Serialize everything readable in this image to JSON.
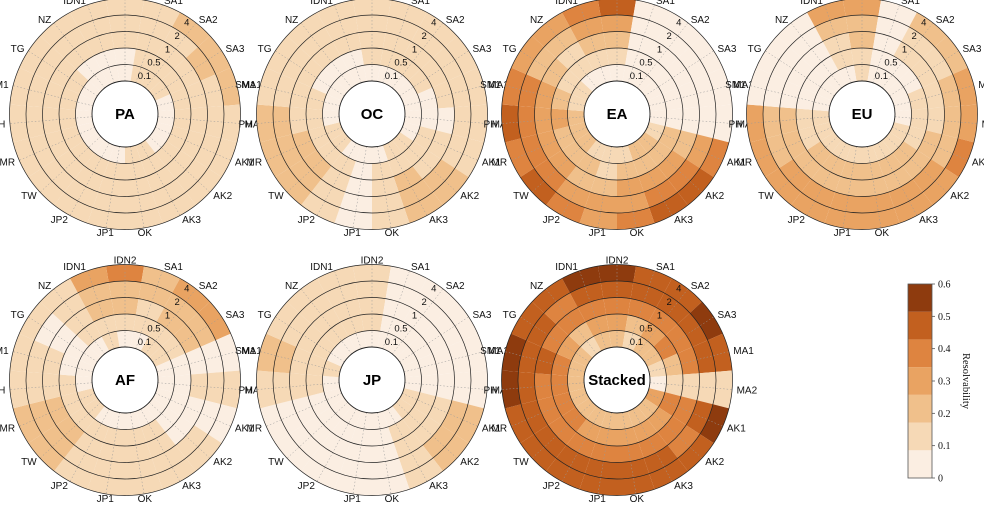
{
  "chart_data": {
    "type": "polar-heatmap",
    "sectors": [
      "IDN2",
      "SA1",
      "SA2",
      "SA3",
      "MA1",
      "MA2",
      "AK1",
      "AK2",
      "AK3",
      "OK",
      "JP1",
      "JP2",
      "TW",
      "MR",
      "PH",
      "SM1",
      "TG",
      "NZ",
      "IDN1"
    ],
    "rings": [
      "0.1",
      "0.5",
      "1",
      "2",
      "4"
    ],
    "colorbar": {
      "label": "Resolvability",
      "ticks": [
        "0",
        "0.1",
        "0.2",
        "0.3",
        "0.4",
        "0.5",
        "0.6"
      ],
      "range": [
        0,
        0.6
      ],
      "colors": [
        "#fbeee2",
        "#f6d9b6",
        "#f0c08b",
        "#e9a362",
        "#de8440",
        "#c2601f",
        "#8e3b0e"
      ]
    },
    "panels": [
      {
        "title": "PA",
        "values": [
          [
            0,
            0.05,
            0.1,
            0.15,
            0.15
          ],
          [
            0.1,
            0.15,
            0.15,
            0.15,
            0.15
          ],
          [
            0.1,
            0.15,
            0.15,
            0.15,
            0.2
          ],
          [
            0.1,
            0.15,
            0.15,
            0.2,
            0.2
          ],
          [
            0.05,
            0.1,
            0.15,
            0.15,
            0.2
          ],
          [
            0.05,
            0.1,
            0.1,
            0.15,
            0.15
          ],
          [
            0.05,
            0.1,
            0.1,
            0.1,
            0.15
          ],
          [
            0.05,
            0.1,
            0.1,
            0.15,
            0.15
          ],
          [
            0.1,
            0.15,
            0.15,
            0.15,
            0.15
          ],
          [
            0.1,
            0.15,
            0.15,
            0.15,
            0.15
          ],
          [
            0.05,
            0.1,
            0.15,
            0.15,
            0.15
          ],
          [
            0.05,
            0.1,
            0.15,
            0.15,
            0.15
          ],
          [
            0.05,
            0.1,
            0.15,
            0.15,
            0.15
          ],
          [
            0.05,
            0.1,
            0.15,
            0.15,
            0.15
          ],
          [
            0.05,
            0.1,
            0.15,
            0.15,
            0.15
          ],
          [
            0.05,
            0.1,
            0.1,
            0.15,
            0.15
          ],
          [
            0.05,
            0.1,
            0.1,
            0.15,
            0.15
          ],
          [
            0.05,
            0.05,
            0.1,
            0.1,
            0.1
          ],
          [
            0.05,
            0.05,
            0.1,
            0.1,
            0.1
          ]
        ]
      },
      {
        "title": "OC",
        "values": [
          [
            0.05,
            0.1,
            0.15,
            0.15,
            0.1
          ],
          [
            0.05,
            0.1,
            0.15,
            0.15,
            0.15
          ],
          [
            0.05,
            0.1,
            0.1,
            0.15,
            0.1
          ],
          [
            0.05,
            0.1,
            0.1,
            0.1,
            0.1
          ],
          [
            0.05,
            0.05,
            0.1,
            0.1,
            0.1
          ],
          [
            0.05,
            0.05,
            0.05,
            0.1,
            0.1
          ],
          [
            0.05,
            0.1,
            0.1,
            0.15,
            0.15
          ],
          [
            0.1,
            0.15,
            0.15,
            0.2,
            0.2
          ],
          [
            0.1,
            0.15,
            0.2,
            0.2,
            0.2
          ],
          [
            0.05,
            0.1,
            0.15,
            0.15,
            0.15
          ],
          [
            0.05,
            0.05,
            0.05,
            0.05,
            0.05
          ],
          [
            0.05,
            0.1,
            0.15,
            0.15,
            0.15
          ],
          [
            0.1,
            0.15,
            0.2,
            0.2,
            0.2
          ],
          [
            0.1,
            0.15,
            0.2,
            0.2,
            0.2
          ],
          [
            0.05,
            0.1,
            0.15,
            0.2,
            0.2
          ],
          [
            0.05,
            0.1,
            0.1,
            0.15,
            0.15
          ],
          [
            0.05,
            0.05,
            0.1,
            0.1,
            0.15
          ],
          [
            0.05,
            0.05,
            0.1,
            0.15,
            0.15
          ],
          [
            0.05,
            0.05,
            0.1,
            0.15,
            0.15
          ]
        ]
      },
      {
        "title": "EA",
        "values": [
          [
            0.05,
            0.1,
            0.2,
            0.3,
            0.45
          ],
          [
            0,
            0,
            0,
            0,
            0
          ],
          [
            0,
            0,
            0,
            0,
            0
          ],
          [
            0,
            0,
            0,
            0,
            0
          ],
          [
            0,
            0,
            0,
            0,
            0
          ],
          [
            0,
            0,
            0,
            0,
            0
          ],
          [
            0.15,
            0.2,
            0.25,
            0.3,
            0.35
          ],
          [
            0.2,
            0.25,
            0.3,
            0.35,
            0.45
          ],
          [
            0.2,
            0.25,
            0.3,
            0.35,
            0.45
          ],
          [
            0.15,
            0.2,
            0.3,
            0.3,
            0.35
          ],
          [
            0.1,
            0.15,
            0.25,
            0.3,
            0.3
          ],
          [
            0.15,
            0.2,
            0.25,
            0.3,
            0.35
          ],
          [
            0.2,
            0.25,
            0.3,
            0.35,
            0.45
          ],
          [
            0.2,
            0.25,
            0.3,
            0.35,
            0.4
          ],
          [
            0.2,
            0.3,
            0.3,
            0.35,
            0.45
          ],
          [
            0.15,
            0.25,
            0.3,
            0.35,
            0.4
          ],
          [
            0.1,
            0.15,
            0.2,
            0.25,
            0.3
          ],
          [
            0.05,
            0.1,
            0.15,
            0.25,
            0.3
          ],
          [
            0.05,
            0.1,
            0.2,
            0.3,
            0.4
          ]
        ]
      },
      {
        "title": "EU",
        "values": [
          [
            0.1,
            0.15,
            0.2,
            0.25,
            0.3
          ],
          [
            0,
            0,
            0,
            0,
            0
          ],
          [
            0.05,
            0.05,
            0.1,
            0.15,
            0.2
          ],
          [
            0.05,
            0.05,
            0.1,
            0.15,
            0.25
          ],
          [
            0.05,
            0.1,
            0.15,
            0.2,
            0.3
          ],
          [
            0.05,
            0.1,
            0.15,
            0.2,
            0.3
          ],
          [
            0.1,
            0.15,
            0.2,
            0.25,
            0.35
          ],
          [
            0.15,
            0.2,
            0.25,
            0.3,
            0.3
          ],
          [
            0.15,
            0.2,
            0.25,
            0.3,
            0.3
          ],
          [
            0.15,
            0.2,
            0.25,
            0.3,
            0.3
          ],
          [
            0.15,
            0.2,
            0.25,
            0.3,
            0.3
          ],
          [
            0.15,
            0.2,
            0.25,
            0.3,
            0.3
          ],
          [
            0.15,
            0.2,
            0.25,
            0.3,
            0.3
          ],
          [
            0.1,
            0.15,
            0.2,
            0.25,
            0.3
          ],
          [
            0.1,
            0.15,
            0.2,
            0.25,
            0.3
          ],
          [
            0,
            0,
            0,
            0,
            0
          ],
          [
            0,
            0,
            0,
            0,
            0
          ],
          [
            0,
            0,
            0,
            0,
            0
          ],
          [
            0.05,
            0.1,
            0.15,
            0.25,
            0.3
          ]
        ]
      },
      {
        "title": "AF",
        "values": [
          [
            0.05,
            0.1,
            0.2,
            0.25,
            0.35
          ],
          [
            0.05,
            0.1,
            0.15,
            0.2,
            0.25
          ],
          [
            0.1,
            0.15,
            0.2,
            0.25,
            0.3
          ],
          [
            0.1,
            0.15,
            0.2,
            0.25,
            0.3
          ],
          [
            0,
            0,
            0,
            0,
            0
          ],
          [
            0.05,
            0.05,
            0.1,
            0.1,
            0.1
          ],
          [
            0,
            0,
            0,
            0,
            0
          ],
          [
            0.05,
            0.05,
            0.05,
            0.1,
            0.1
          ],
          [
            0.05,
            0.1,
            0.15,
            0.15,
            0.15
          ],
          [
            0.05,
            0.1,
            0.15,
            0.15,
            0.15
          ],
          [
            0.05,
            0.1,
            0.15,
            0.15,
            0.15
          ],
          [
            0.05,
            0.1,
            0.15,
            0.15,
            0.15
          ],
          [
            0.1,
            0.15,
            0.2,
            0.25,
            0.25
          ],
          [
            0.1,
            0.15,
            0.2,
            0.2,
            0.2
          ],
          [
            0.05,
            0.1,
            0.1,
            0.15,
            0.15
          ],
          [
            0,
            0.05,
            0.1,
            0.1,
            0.1
          ],
          [
            0,
            0.05,
            0.05,
            0.05,
            0.1
          ],
          [
            0.05,
            0.1,
            0.1,
            0.15,
            0.15
          ],
          [
            0.1,
            0.15,
            0.2,
            0.25,
            0.3
          ]
        ]
      },
      {
        "title": "JP",
        "values": [
          [
            0.05,
            0.1,
            0.15,
            0.15,
            0.15
          ],
          [
            0,
            0,
            0,
            0,
            0
          ],
          [
            0,
            0,
            0,
            0,
            0
          ],
          [
            0,
            0,
            0,
            0,
            0
          ],
          [
            0,
            0,
            0,
            0,
            0
          ],
          [
            0,
            0,
            0,
            0,
            0
          ],
          [
            0.1,
            0.15,
            0.15,
            0.2,
            0.2
          ],
          [
            0.1,
            0.15,
            0.15,
            0.2,
            0.2
          ],
          [
            0.05,
            0.1,
            0.1,
            0.15,
            0.15
          ],
          [
            0,
            0,
            0,
            0,
            0
          ],
          [
            0,
            0,
            0,
            0,
            0
          ],
          [
            0,
            0,
            0,
            0,
            0
          ],
          [
            0,
            0,
            0,
            0,
            0
          ],
          [
            0,
            0,
            0,
            0,
            0
          ],
          [
            0.05,
            0.1,
            0.1,
            0.15,
            0.15
          ],
          [
            0.1,
            0.15,
            0.15,
            0.2,
            0.2
          ],
          [
            0.05,
            0.1,
            0.15,
            0.15,
            0.15
          ],
          [
            0.05,
            0.1,
            0.1,
            0.15,
            0.15
          ],
          [
            0.05,
            0.1,
            0.15,
            0.15,
            0.15
          ]
        ]
      },
      {
        "title": "Stacked",
        "values": [
          [
            0.2,
            0.3,
            0.4,
            0.5,
            0.55
          ],
          [
            0.15,
            0.25,
            0.35,
            0.45,
            0.5
          ],
          [
            0.2,
            0.3,
            0.35,
            0.45,
            0.5
          ],
          [
            0.25,
            0.35,
            0.4,
            0.5,
            0.55
          ],
          [
            0.15,
            0.25,
            0.35,
            0.45,
            0.5
          ],
          [
            0.05,
            0.1,
            0.1,
            0.1,
            0.15
          ],
          [
            0.3,
            0.35,
            0.4,
            0.45,
            0.55
          ],
          [
            0.25,
            0.3,
            0.35,
            0.4,
            0.5
          ],
          [
            0.25,
            0.3,
            0.35,
            0.45,
            0.5
          ],
          [
            0.2,
            0.3,
            0.35,
            0.45,
            0.5
          ],
          [
            0.2,
            0.3,
            0.35,
            0.45,
            0.5
          ],
          [
            0.2,
            0.3,
            0.35,
            0.45,
            0.5
          ],
          [
            0.25,
            0.35,
            0.4,
            0.45,
            0.5
          ],
          [
            0.25,
            0.35,
            0.4,
            0.45,
            0.5
          ],
          [
            0.25,
            0.35,
            0.4,
            0.5,
            0.55
          ],
          [
            0.25,
            0.35,
            0.45,
            0.5,
            0.6
          ],
          [
            0.2,
            0.3,
            0.35,
            0.45,
            0.5
          ],
          [
            0.15,
            0.25,
            0.35,
            0.4,
            0.5
          ],
          [
            0.2,
            0.3,
            0.4,
            0.5,
            0.55
          ]
        ]
      }
    ]
  }
}
